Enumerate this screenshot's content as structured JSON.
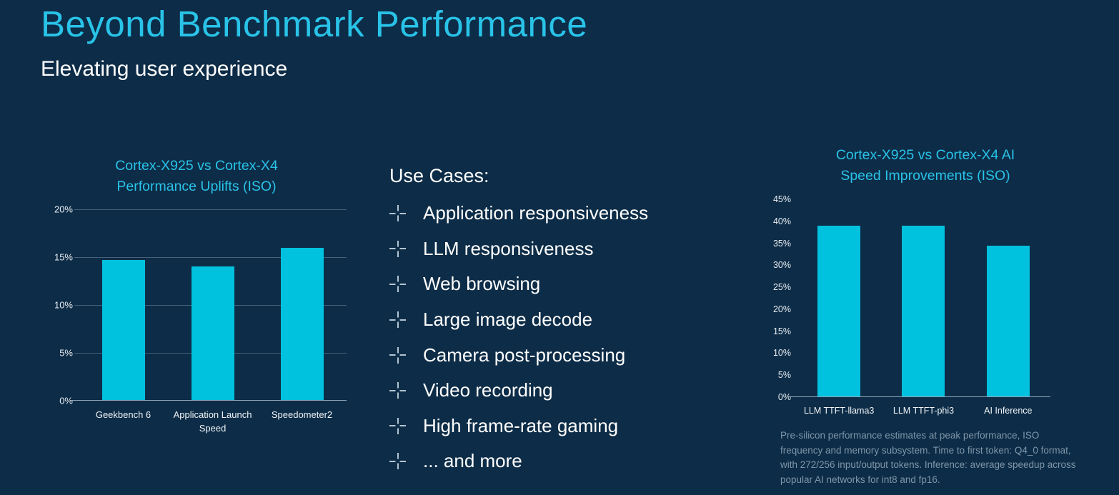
{
  "slide": {
    "title": "Beyond Benchmark Performance",
    "subtitle": "Elevating user experience"
  },
  "use_cases": {
    "heading": "Use Cases:",
    "items": [
      "Application responsiveness",
      "LLM responsiveness",
      "Web browsing",
      "Large image decode",
      "Camera post-processing",
      "Video recording",
      "High frame-rate gaming",
      "... and more"
    ]
  },
  "chart_data": [
    {
      "type": "bar",
      "title": "Cortex-X925 vs Cortex-X4 Performance Uplifts (ISO)",
      "title_lines": [
        "Cortex-X925 vs Cortex-X4",
        "Performance Uplifts (ISO)"
      ],
      "categories": [
        "Geekbench 6",
        "Application Launch Speed",
        "Speedometer2"
      ],
      "values": [
        14.7,
        14,
        16
      ],
      "unit": "%",
      "ylim": [
        0,
        20
      ],
      "yticks": [
        0,
        5,
        10,
        15,
        20
      ],
      "grid": true,
      "legend": false,
      "bar_color": "#00c1de"
    },
    {
      "type": "bar",
      "title": "Cortex-X925 vs Cortex-X4 AI Speed Improvements (ISO)",
      "title_lines": [
        "Cortex-X925 vs Cortex-X4 AI",
        "Speed Improvements (ISO)"
      ],
      "categories": [
        "LLM TTFT-llama3",
        "LLM TTFT-phi3",
        "AI Inference"
      ],
      "values": [
        39,
        39,
        34.5
      ],
      "unit": "%",
      "ylim": [
        0,
        45
      ],
      "yticks": [
        0,
        5,
        10,
        15,
        20,
        25,
        30,
        35,
        40,
        45
      ],
      "grid": false,
      "legend": false,
      "bar_color": "#00c1de"
    }
  ],
  "footnote": "Pre-silicon performance estimates at peak performance, ISO frequency and memory subsystem.  Time to first token: Q4_0 format, with 272/256 input/output tokens. Inference: average speedup across popular AI networks for int8 and fp16.",
  "colors": {
    "background": "#0d2c47",
    "accent_cyan": "#29c3e8",
    "bar_cyan": "#00c1de",
    "text_white": "#ffffff",
    "muted_text": "#7e96a9"
  }
}
